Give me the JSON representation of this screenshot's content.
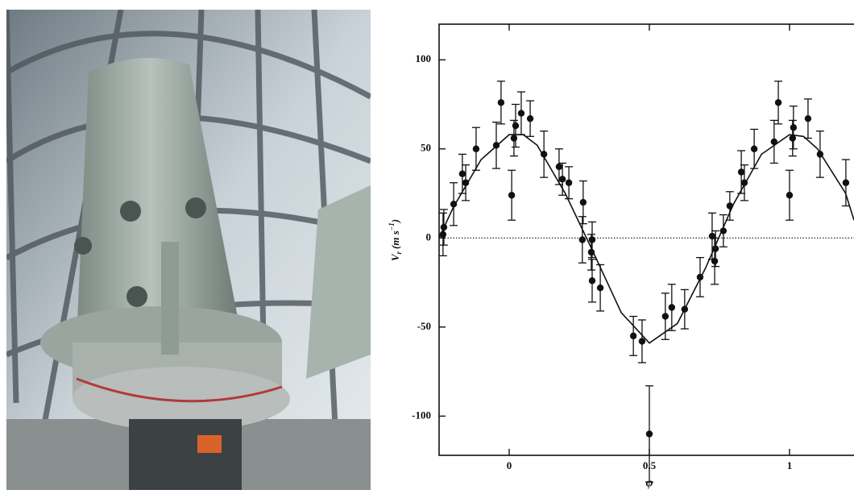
{
  "chart_data": {
    "type": "scatter",
    "xlabel": "φ",
    "ylabel": [
      "V",
      "r",
      "(m s",
      "−1",
      ")"
    ],
    "xlim": [
      -0.25,
      1.23
    ],
    "ylim": [
      -122,
      120
    ],
    "xticks": [
      0,
      0.5,
      1
    ],
    "yticks": [
      -100,
      -50,
      0,
      50,
      100
    ],
    "hline": 0,
    "color": "#111111",
    "x": [
      -0.236,
      -0.233,
      -0.198,
      -0.167,
      -0.155,
      -0.118,
      -0.046,
      -0.029,
      0.009,
      0.017,
      0.023,
      0.043,
      0.075,
      0.124,
      0.178,
      0.19,
      0.213,
      0.264,
      0.261,
      0.293,
      0.296,
      0.296,
      0.325,
      0.443,
      0.474,
      0.5,
      0.557,
      0.58,
      0.626,
      0.681,
      0.724,
      0.733,
      0.736,
      0.764,
      0.787,
      0.828,
      0.839,
      0.874,
      0.945,
      0.96,
      1.0,
      1.011,
      1.014,
      1.066,
      1.109,
      1.201
    ],
    "values": [
      2,
      6,
      19,
      36,
      31,
      50,
      52,
      76,
      24,
      56,
      63,
      70,
      67,
      47,
      40,
      33,
      31,
      20,
      -1,
      -8,
      -1,
      -24,
      -28,
      -55,
      -58,
      -110,
      -44,
      -39,
      -40,
      -22,
      1,
      -13,
      -6,
      4,
      18,
      37,
      31,
      50,
      54,
      76,
      24,
      56,
      62,
      67,
      47,
      31
    ],
    "errors": [
      12,
      10,
      12,
      11,
      10,
      12,
      13,
      12,
      14,
      10,
      12,
      12,
      10,
      13,
      10,
      9,
      9,
      12,
      13,
      10,
      10,
      12,
      13,
      11,
      12,
      27,
      13,
      13,
      11,
      11,
      13,
      13,
      10,
      9,
      8,
      12,
      10,
      11,
      12,
      12,
      14,
      10,
      12,
      11,
      13,
      13
    ],
    "fit": {
      "x": [
        -0.25,
        -0.2,
        -0.1,
        0.0,
        0.05,
        0.1,
        0.2,
        0.3,
        0.4,
        0.5,
        0.6,
        0.7,
        0.8,
        0.9,
        1.0,
        1.05,
        1.1,
        1.2,
        1.23
      ],
      "values": [
        0,
        17,
        44,
        58,
        58,
        52,
        25,
        -8,
        -42,
        -59,
        -48,
        -17,
        19,
        47,
        58,
        57,
        50,
        25,
        10
      ]
    }
  }
}
